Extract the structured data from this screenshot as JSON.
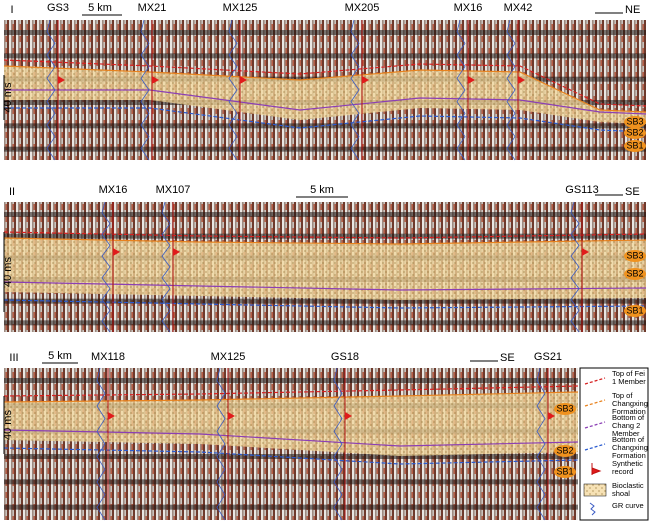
{
  "panels": [
    {
      "label": "I",
      "direction": "NE",
      "scale_bar": "5 km",
      "time_scale": "40 ms",
      "wells": [
        "GS3",
        "MX21",
        "MX125",
        "MX205",
        "MX16",
        "MX42"
      ],
      "boundaries": [
        "SB3",
        "SB2",
        "SB1"
      ]
    },
    {
      "label": "II",
      "direction": "SE",
      "scale_bar": "5 km",
      "time_scale": "40 ms",
      "wells": [
        "MX16",
        "MX107",
        "GS113"
      ],
      "boundaries": [
        "SB3",
        "SB2",
        "SB1"
      ]
    },
    {
      "label": "III",
      "direction": "SE",
      "scale_bar": "5 km",
      "time_scale": "40 ms",
      "wells": [
        "MX118",
        "MX125",
        "GS18",
        "GS21"
      ],
      "boundaries": [
        "SB3",
        "SB2",
        "SB1"
      ]
    }
  ],
  "legend": [
    "Top of Fei 1 Member",
    "Top of Changxing Formation",
    "Bottom of Chang 2 Member",
    "Bottom of Changxing Formation",
    "Synthetic record",
    "Bioclastic shoal",
    "GR curve"
  ]
}
